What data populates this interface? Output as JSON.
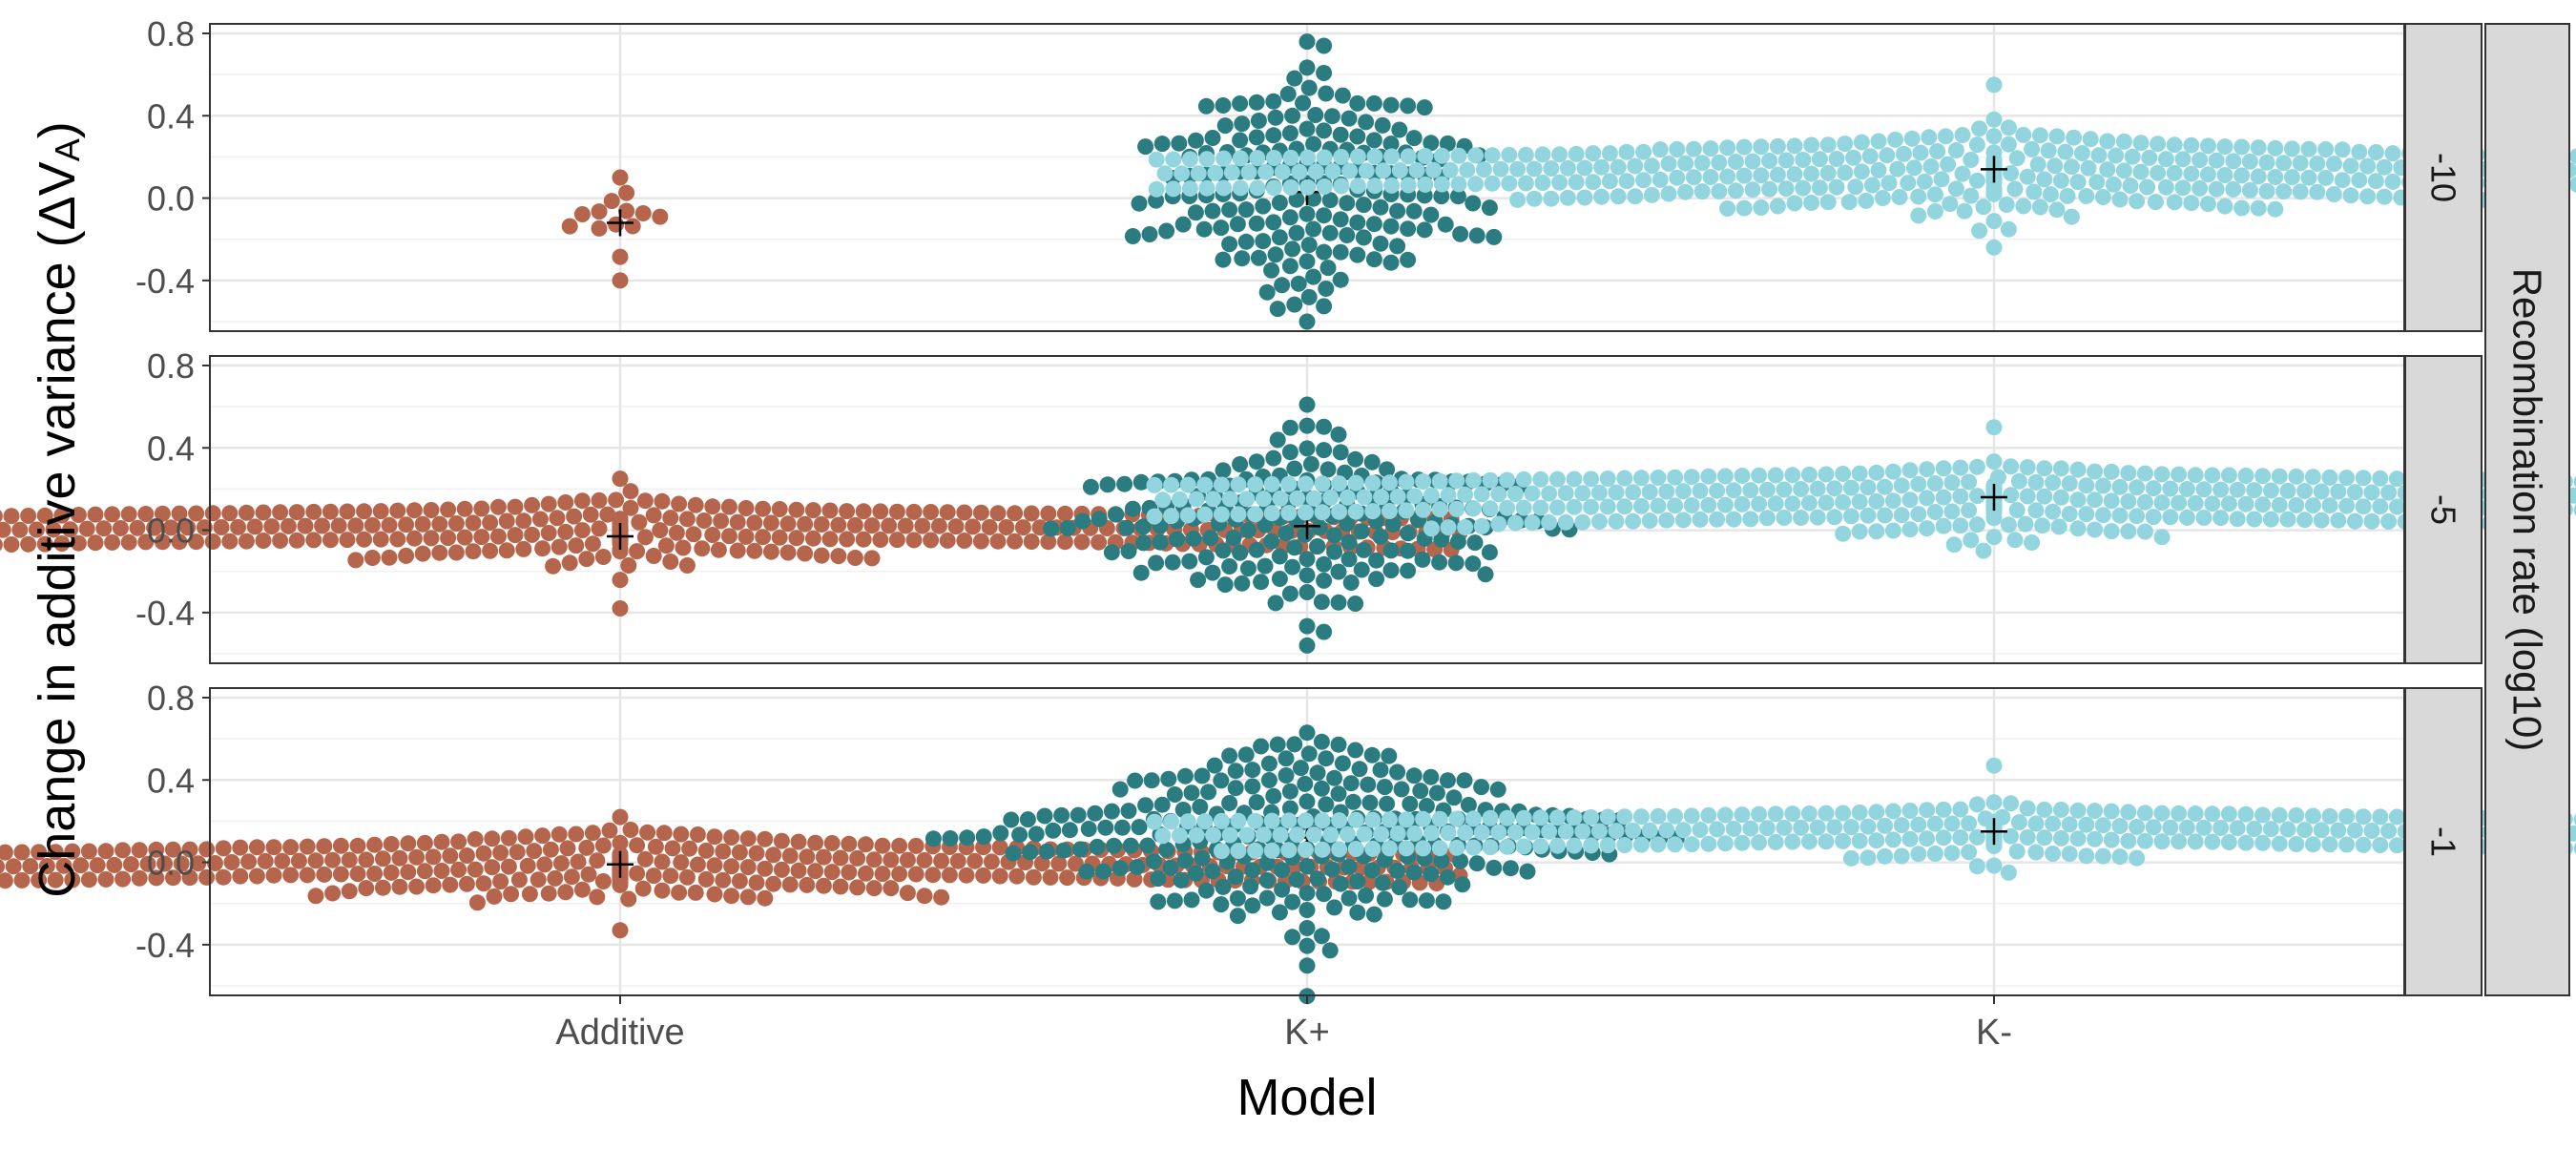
{
  "chart_data": {
    "type": "scatter",
    "subtype": "beeswarm",
    "xlabel": "Model",
    "ylabel_prefix": "Change in additive variance ",
    "ylabel_symbol": "ΔV",
    "ylabel_subscript": "A",
    "facet_label": "Recombination rate (log10)",
    "categories": [
      "Additive",
      "K+",
      "K-"
    ],
    "colors": {
      "Additive": "#B5654B",
      "K+": "#2B7C80",
      "K-": "#93D5DE"
    },
    "mean_marker": "+",
    "ylim": [
      -0.6,
      0.8
    ],
    "yticks": [
      "0.8",
      "0.4",
      "0.0",
      "-0.4"
    ],
    "ytick_values": [
      0.8,
      0.4,
      0.0,
      -0.4
    ],
    "grid": true,
    "panels": [
      {
        "facet": "-10",
        "groups": [
          {
            "model": "Additive",
            "n": 14,
            "mean": -0.12,
            "min": -0.4,
            "max": 0.1,
            "center": -0.1,
            "spread": 0.09
          },
          {
            "model": "K+",
            "n": 180,
            "mean": 0.03,
            "min": -0.6,
            "max": 0.76,
            "center": 0.04,
            "spread": 0.28
          },
          {
            "model": "K-",
            "n": 600,
            "mean": 0.14,
            "min": -0.24,
            "max": 0.55,
            "center": 0.12,
            "spread": 0.08
          }
        ]
      },
      {
        "facet": "-5",
        "groups": [
          {
            "model": "Additive",
            "n": 600,
            "mean": -0.03,
            "min": -0.38,
            "max": 0.25,
            "center": 0.0,
            "spread": 0.06
          },
          {
            "model": "K+",
            "n": 180,
            "mean": 0.02,
            "min": -0.56,
            "max": 0.61,
            "center": 0.03,
            "spread": 0.2
          },
          {
            "model": "K-",
            "n": 600,
            "mean": 0.16,
            "min": -0.1,
            "max": 0.5,
            "center": 0.15,
            "spread": 0.07
          }
        ]
      },
      {
        "facet": "-1",
        "groups": [
          {
            "model": "Additive",
            "n": 650,
            "mean": -0.01,
            "min": -0.33,
            "max": 0.22,
            "center": -0.02,
            "spread": 0.06
          },
          {
            "model": "K+",
            "n": 260,
            "mean": 0.12,
            "min": -0.65,
            "max": 0.63,
            "center": 0.13,
            "spread": 0.21
          },
          {
            "model": "K-",
            "n": 650,
            "mean": 0.15,
            "min": -0.05,
            "max": 0.47,
            "center": 0.15,
            "spread": 0.05
          }
        ]
      }
    ]
  }
}
